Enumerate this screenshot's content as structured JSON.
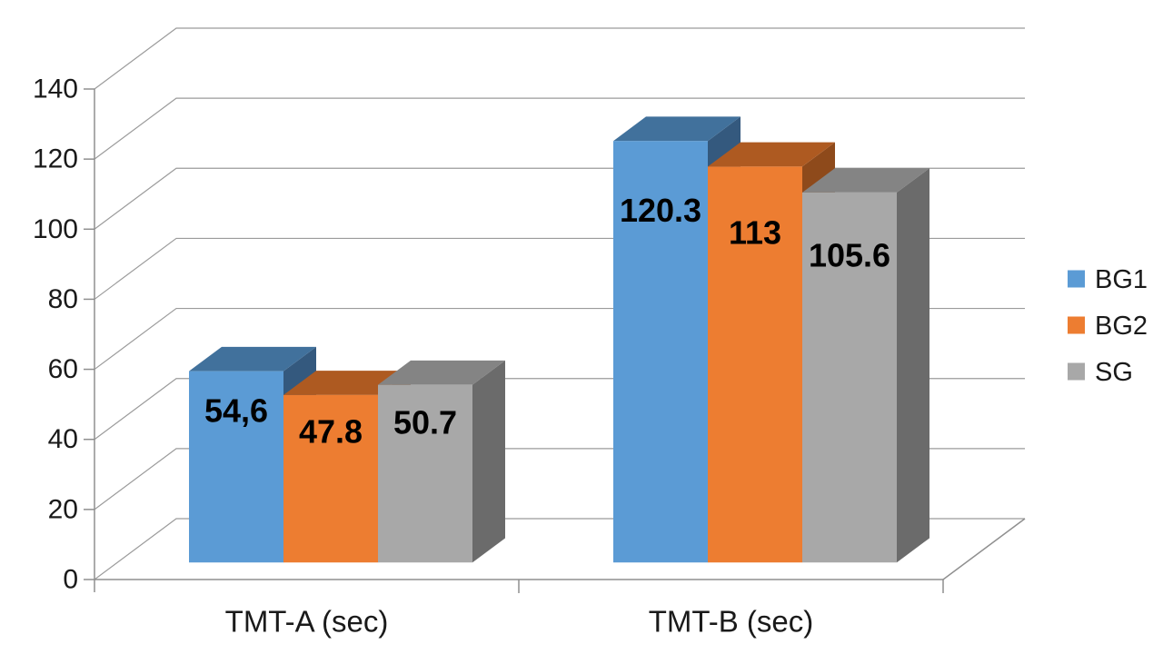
{
  "chart": {
    "background": "#ffffff",
    "grid_color": "#9b9b9b",
    "axis_color": "#8f8f8f",
    "text_color": "#1a1a1a",
    "data_label_color": "#000000"
  },
  "chart_data": {
    "type": "bar",
    "style": "3d-clustered-column",
    "title": "",
    "categories": [
      "TMT-A (sec)",
      "TMT-B (sec)"
    ],
    "series": [
      {
        "name": "BG1",
        "values": [
          54.6,
          120.3
        ],
        "data_labels": [
          "54,6",
          "120.3"
        ],
        "color": "#5B9BD5",
        "top_color": "#41719C",
        "side_color": "#34597E"
      },
      {
        "name": "BG2",
        "values": [
          47.8,
          113
        ],
        "data_labels": [
          "47.8",
          "113"
        ],
        "color": "#ED7D31",
        "top_color": "#AE5A21",
        "side_color": "#8E4A1B"
      },
      {
        "name": "SG",
        "values": [
          50.7,
          105.6
        ],
        "data_labels": [
          "50.7",
          "105.6"
        ],
        "color": "#A8A8A8",
        "top_color": "#848484",
        "side_color": "#6B6B6B"
      }
    ],
    "xlabel": "",
    "ylabel": "",
    "ylim": [
      0,
      140
    ],
    "y_ticks": [
      0,
      20,
      40,
      60,
      80,
      100,
      120,
      140
    ],
    "grid": true,
    "legend_position": "right"
  }
}
